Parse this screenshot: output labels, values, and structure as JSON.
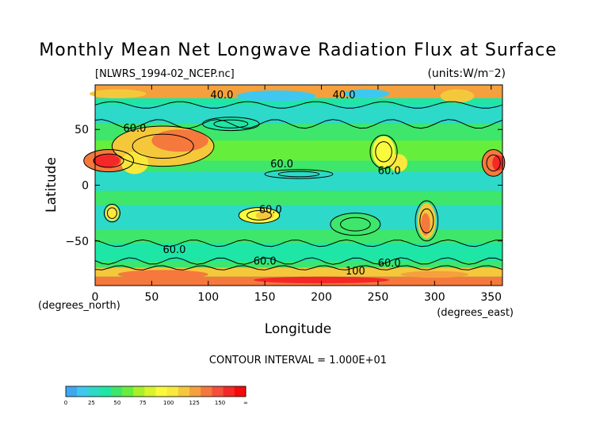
{
  "title": "Monthly Mean Net Longwave Radiation Flux at Surface",
  "file_label": "[NLWRS_1994-02_NCEP.nc]",
  "units_label": "(units:W/m⁻2)",
  "xlabel": "Longitude",
  "ylabel": "Latitude",
  "x_unit_label": "(degrees_east)",
  "y_unit_label": "(degrees_north)",
  "contour_interval_label": "CONTOUR INTERVAL = 1.000E+01",
  "chart_data": {
    "type": "heatmap",
    "title": "Monthly Mean Net Longwave Radiation Flux at Surface",
    "xlabel": "Longitude",
    "ylabel": "Latitude",
    "xlim": [
      0,
      360
    ],
    "ylim": [
      -90,
      90
    ],
    "x_ticks": [
      0,
      50,
      100,
      150,
      200,
      250,
      300,
      350
    ],
    "y_ticks": [
      50,
      0,
      -50
    ],
    "contour_labels": [
      {
        "text": "40.0",
        "lon": 112,
        "lat": 78
      },
      {
        "text": "40.0",
        "lon": 220,
        "lat": 78
      },
      {
        "text": "60.0",
        "lon": 35,
        "lat": 48
      },
      {
        "text": "60.0",
        "lon": 165,
        "lat": 16
      },
      {
        "text": "60.0",
        "lon": 260,
        "lat": 10
      },
      {
        "text": "60.0",
        "lon": 155,
        "lat": -25
      },
      {
        "text": "60.0",
        "lon": 70,
        "lat": -61
      },
      {
        "text": "60.0",
        "lon": 150,
        "lat": -71
      },
      {
        "text": "60.0",
        "lon": 260,
        "lat": -73
      },
      {
        "text": "100",
        "lon": 230,
        "lat": -80
      }
    ],
    "colorbar": {
      "ticks": [
        "0",
        "25",
        "50",
        "75",
        "100",
        "125",
        "150",
        "∞"
      ],
      "colors": [
        "#3fa7ef",
        "#3fc8ef",
        "#2dd9c8",
        "#1ee6a6",
        "#3ee66b",
        "#66ee3c",
        "#a8f02a",
        "#d8f42a",
        "#fafa3c",
        "#fae83c",
        "#f5c83c",
        "#f5a03c",
        "#f5783c",
        "#f5503c",
        "#f52828",
        "#f50a0a"
      ]
    }
  }
}
